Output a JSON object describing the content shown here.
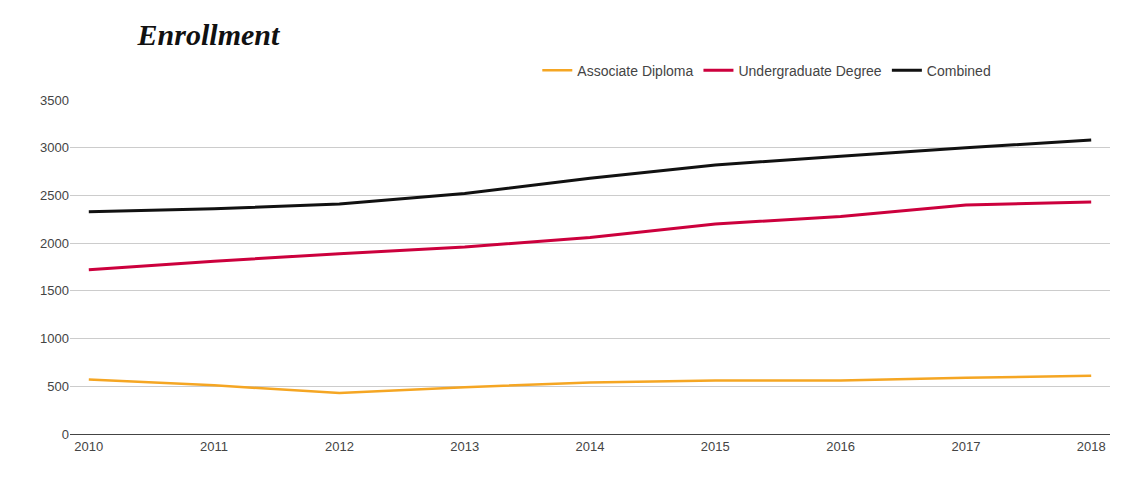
{
  "chart_data": {
    "type": "line",
    "title": "Enrollment",
    "x": [
      2010,
      2011,
      2012,
      2013,
      2014,
      2015,
      2016,
      2017,
      2018
    ],
    "series": [
      {
        "name": "Associate Diploma",
        "color": "#F5A623",
        "values": [
          570,
          510,
          430,
          490,
          540,
          560,
          560,
          590,
          610
        ]
      },
      {
        "name": "Undergraduate Degree",
        "color": "#CC003D",
        "values": [
          1720,
          1810,
          1890,
          1960,
          2060,
          2200,
          2280,
          2400,
          2430
        ]
      },
      {
        "name": "Combined",
        "color": "#111111",
        "values": [
          2330,
          2360,
          2410,
          2520,
          2680,
          2820,
          2910,
          3000,
          3080
        ]
      }
    ],
    "xlim": [
      2009.85,
      2018.15
    ],
    "xticks": [
      2010,
      2011,
      2012,
      2013,
      2014,
      2015,
      2016,
      2017,
      2018
    ],
    "ylim": [
      0,
      3500
    ],
    "yticks": [
      0,
      500,
      1000,
      1500,
      2000,
      2500,
      3000,
      3500
    ],
    "grid": true,
    "legend": "top"
  }
}
